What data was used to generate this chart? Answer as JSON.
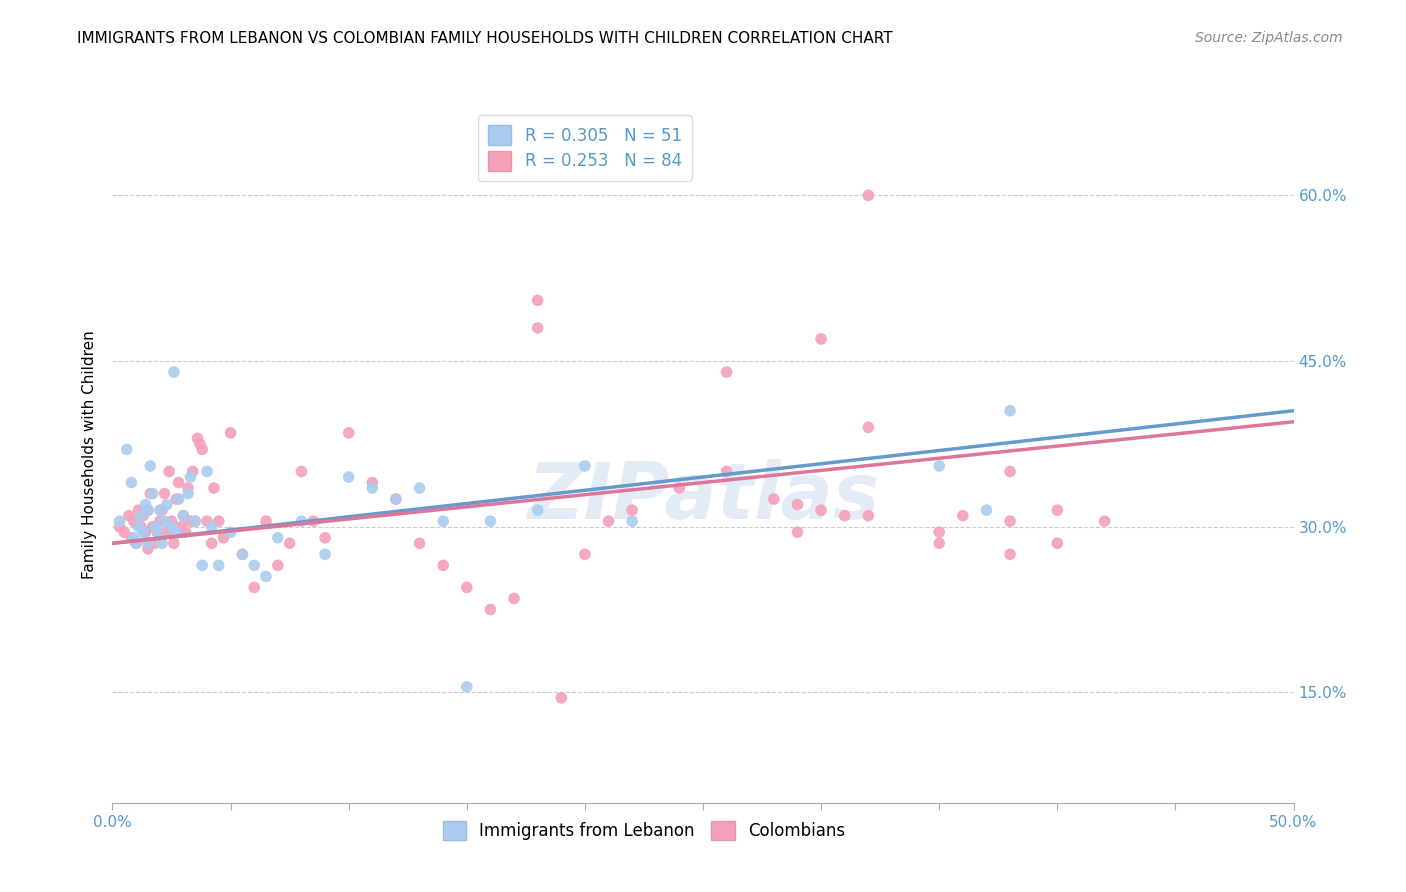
{
  "title": "IMMIGRANTS FROM LEBANON VS COLOMBIAN FAMILY HOUSEHOLDS WITH CHILDREN CORRELATION CHART",
  "source": "Source: ZipAtlas.com",
  "ylabel": "Family Households with Children",
  "xlim": [
    0.0,
    0.5
  ],
  "ylim": [
    0.05,
    0.68
  ],
  "xticks": [
    0.0,
    0.05,
    0.1,
    0.15,
    0.2,
    0.25,
    0.3,
    0.35,
    0.4,
    0.45,
    0.5
  ],
  "yticks_right": [
    0.15,
    0.3,
    0.45,
    0.6
  ],
  "yticklabels_right": [
    "15.0%",
    "30.0%",
    "45.0%",
    "60.0%"
  ],
  "hlines": [
    0.15,
    0.3,
    0.45,
    0.6
  ],
  "lebanon_color": "#aaccf0",
  "colombian_color": "#f4a0b8",
  "line_color_lebanon": "#6699cc",
  "line_color_colombian": "#dd7799",
  "R_lebanon": 0.305,
  "N_lebanon": 51,
  "R_colombian": 0.253,
  "N_colombian": 84,
  "watermark_text": "ZIPatlas",
  "title_fontsize": 11,
  "tick_fontsize": 11,
  "axis_label_fontsize": 11,
  "legend_fontsize": 12,
  "source_fontsize": 10,
  "background_color": "#ffffff",
  "grid_color": "#cccccc",
  "tick_color": "#5599cc",
  "lebanon_x": [
    0.003,
    0.006,
    0.008,
    0.009,
    0.01,
    0.011,
    0.012,
    0.013,
    0.014,
    0.015,
    0.015,
    0.016,
    0.017,
    0.018,
    0.019,
    0.02,
    0.021,
    0.022,
    0.023,
    0.025,
    0.026,
    0.027,
    0.028,
    0.03,
    0.032,
    0.033,
    0.035,
    0.038,
    0.04,
    0.042,
    0.045,
    0.05,
    0.055,
    0.06,
    0.065,
    0.07,
    0.08,
    0.09,
    0.1,
    0.11,
    0.12,
    0.13,
    0.14,
    0.15,
    0.16,
    0.18,
    0.2,
    0.22,
    0.35,
    0.37,
    0.38
  ],
  "lebanon_y": [
    0.305,
    0.37,
    0.34,
    0.29,
    0.285,
    0.3,
    0.31,
    0.295,
    0.32,
    0.285,
    0.315,
    0.355,
    0.33,
    0.3,
    0.295,
    0.315,
    0.285,
    0.305,
    0.32,
    0.3,
    0.44,
    0.295,
    0.325,
    0.31,
    0.33,
    0.345,
    0.305,
    0.265,
    0.35,
    0.3,
    0.265,
    0.295,
    0.275,
    0.265,
    0.255,
    0.29,
    0.305,
    0.275,
    0.345,
    0.335,
    0.325,
    0.335,
    0.305,
    0.155,
    0.305,
    0.315,
    0.355,
    0.305,
    0.355,
    0.315,
    0.405
  ],
  "colombian_x": [
    0.003,
    0.005,
    0.007,
    0.008,
    0.009,
    0.01,
    0.011,
    0.012,
    0.013,
    0.014,
    0.015,
    0.015,
    0.016,
    0.017,
    0.018,
    0.019,
    0.02,
    0.021,
    0.022,
    0.023,
    0.024,
    0.025,
    0.026,
    0.027,
    0.028,
    0.029,
    0.03,
    0.031,
    0.032,
    0.033,
    0.034,
    0.035,
    0.036,
    0.037,
    0.038,
    0.04,
    0.042,
    0.043,
    0.045,
    0.047,
    0.05,
    0.055,
    0.06,
    0.065,
    0.07,
    0.075,
    0.08,
    0.085,
    0.09,
    0.1,
    0.11,
    0.12,
    0.13,
    0.14,
    0.15,
    0.16,
    0.17,
    0.18,
    0.19,
    0.2,
    0.21,
    0.22,
    0.24,
    0.26,
    0.28,
    0.3,
    0.32,
    0.35,
    0.38,
    0.4,
    0.42,
    0.32,
    0.18,
    0.26,
    0.3,
    0.32,
    0.38,
    0.29,
    0.31,
    0.35,
    0.38,
    0.29,
    0.4,
    0.36
  ],
  "colombian_y": [
    0.3,
    0.295,
    0.31,
    0.29,
    0.305,
    0.285,
    0.315,
    0.3,
    0.31,
    0.295,
    0.28,
    0.315,
    0.33,
    0.3,
    0.285,
    0.295,
    0.305,
    0.315,
    0.33,
    0.295,
    0.35,
    0.305,
    0.285,
    0.325,
    0.34,
    0.3,
    0.31,
    0.295,
    0.335,
    0.305,
    0.35,
    0.305,
    0.38,
    0.375,
    0.37,
    0.305,
    0.285,
    0.335,
    0.305,
    0.29,
    0.385,
    0.275,
    0.245,
    0.305,
    0.265,
    0.285,
    0.35,
    0.305,
    0.29,
    0.385,
    0.34,
    0.325,
    0.285,
    0.265,
    0.245,
    0.225,
    0.235,
    0.505,
    0.145,
    0.275,
    0.305,
    0.315,
    0.335,
    0.35,
    0.325,
    0.315,
    0.31,
    0.295,
    0.275,
    0.285,
    0.305,
    0.6,
    0.48,
    0.44,
    0.47,
    0.39,
    0.35,
    0.295,
    0.31,
    0.285,
    0.305,
    0.32,
    0.315,
    0.31
  ]
}
